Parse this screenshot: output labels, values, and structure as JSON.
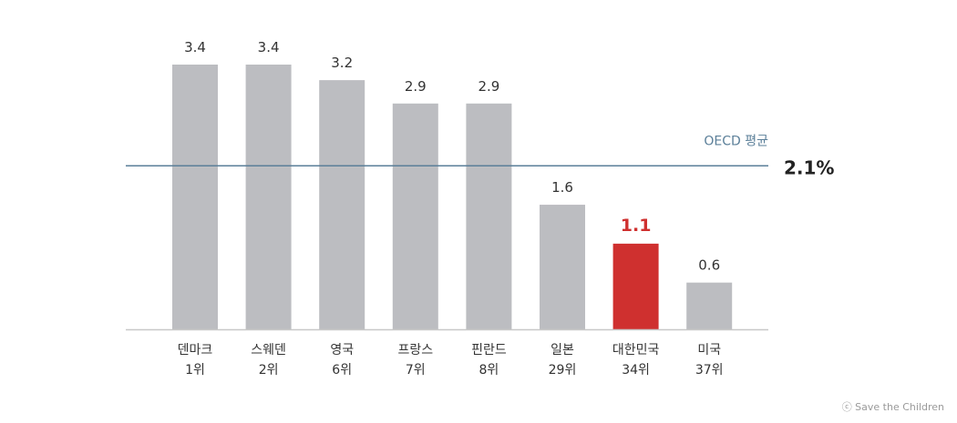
{
  "chart_data": {
    "type": "bar",
    "categories": [
      "덴마크",
      "스웨덴",
      "영국",
      "프랑스",
      "핀란드",
      "일본",
      "대한민국",
      "미국"
    ],
    "ranks": [
      "1위",
      "2위",
      "6위",
      "7위",
      "8위",
      "29위",
      "34위",
      "37위"
    ],
    "values": [
      3.4,
      3.4,
      3.2,
      2.9,
      2.9,
      1.6,
      1.1,
      0.6
    ],
    "value_labels": [
      "3.4",
      "3.4",
      "3.2",
      "2.9",
      "2.9",
      "1.6",
      "1.1",
      "0.6"
    ],
    "highlight_index": 6,
    "reference_line": {
      "label": "OECD 평균",
      "value": 2.1,
      "value_label": "2.1%"
    },
    "ylim": [
      0,
      3.4
    ],
    "grid": false,
    "colors": {
      "bar": "#bcbdc1",
      "highlight": "#cf302f",
      "reference": "#5b7f99",
      "baseline": "#c8c8c8",
      "text": "#333333"
    }
  },
  "credit": "ⓒ Save the Children"
}
